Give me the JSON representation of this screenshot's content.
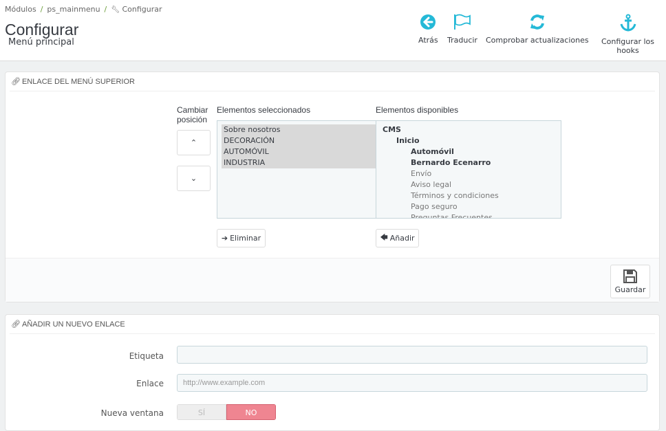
{
  "breadcrumb": [
    "Módulos",
    "ps_mainmenu",
    "Configurar"
  ],
  "page": {
    "title": "Configurar",
    "subtitle": "Menú principal"
  },
  "toolbar": [
    {
      "label": "Atrás",
      "icon": "arrow-circle-left-icon"
    },
    {
      "label": "Traducir",
      "icon": "flag-icon"
    },
    {
      "label": "Comprobar actualizaciones",
      "icon": "refresh-icon"
    },
    {
      "label": "Configurar los hooks",
      "icon": "anchor-icon"
    }
  ],
  "accent": "#25b9d7",
  "menu_panel": {
    "heading": "ENLACE DEL MENÚ SUPERIOR",
    "change_position": "Cambiar posición",
    "selected_label": "Elementos seleccionados",
    "available_label": "Elementos disponibles",
    "selected": [
      "Sobre nosotros",
      "DECORACIÓN",
      "AUTOMÓVIL",
      "INDUSTRIA"
    ],
    "available": [
      {
        "text": "CMS",
        "level": 0,
        "bold": true
      },
      {
        "text": "Inicio",
        "level": 1,
        "bold": true
      },
      {
        "text": "Automóvil",
        "level": 2,
        "bold": true
      },
      {
        "text": "Bernardo Ecenarro",
        "level": 2,
        "bold": true
      },
      {
        "text": "Envío",
        "level": 2,
        "bold": false
      },
      {
        "text": "Aviso legal",
        "level": 2,
        "bold": false
      },
      {
        "text": "Términos y condiciones",
        "level": 2,
        "bold": false
      },
      {
        "text": "Pago seguro",
        "level": 2,
        "bold": false
      },
      {
        "text": "Preguntas Frecuentes",
        "level": 2,
        "bold": false
      }
    ],
    "remove_label": "Eliminar",
    "add_label": "Añadir",
    "save_label": "Guardar"
  },
  "new_link_panel": {
    "heading": "AÑADIR UN NUEVO ENLACE",
    "label_field": {
      "label": "Etiqueta",
      "value": "",
      "placeholder": ""
    },
    "link_field": {
      "label": "Enlace",
      "value": "",
      "placeholder": "http://www.example.com"
    },
    "new_window": {
      "label": "Nueva ventana",
      "yes": "SÍ",
      "no": "NO",
      "selected": "NO",
      "no_color": "#ef8591"
    }
  }
}
